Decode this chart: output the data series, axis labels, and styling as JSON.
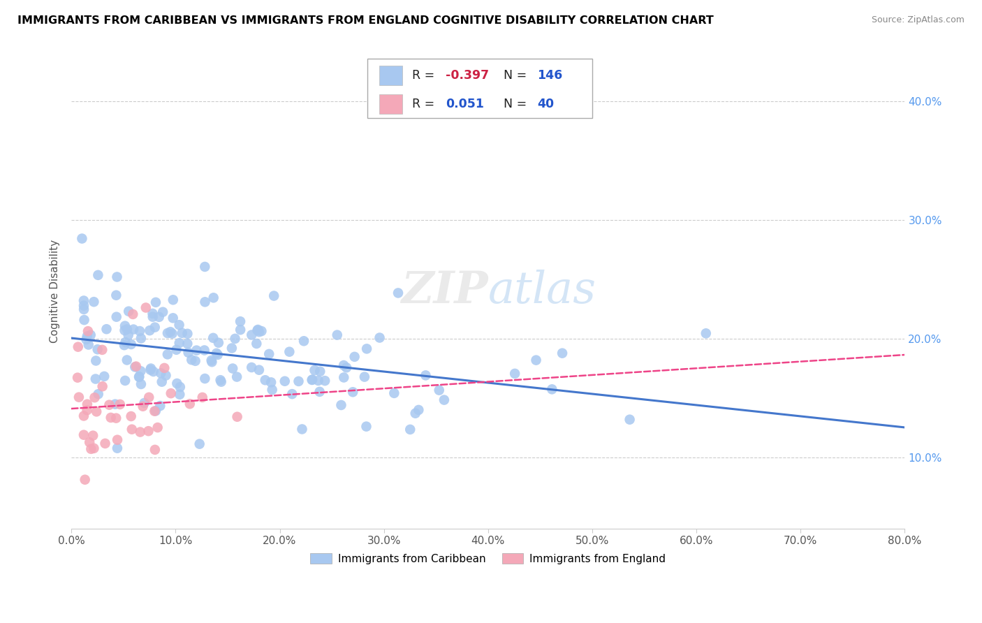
{
  "title": "IMMIGRANTS FROM CARIBBEAN VS IMMIGRANTS FROM ENGLAND COGNITIVE DISABILITY CORRELATION CHART",
  "source": "Source: ZipAtlas.com",
  "ylabel": "Cognitive Disability",
  "legend_label1": "Immigrants from Caribbean",
  "legend_label2": "Immigrants from England",
  "r1": -0.397,
  "n1": 146,
  "r2": 0.051,
  "n2": 40,
  "scatter_color1": "#a8c8f0",
  "scatter_color2": "#f4a8b8",
  "line_color1": "#4477cc",
  "line_color2": "#ee4488",
  "xlim": [
    0.0,
    0.8
  ],
  "ylim": [
    0.04,
    0.44
  ],
  "ytick_vals": [
    0.1,
    0.2,
    0.3,
    0.4
  ],
  "trend1_x0": 0.0,
  "trend1_y0": 0.2,
  "trend1_x1": 0.8,
  "trend1_y1": 0.148,
  "trend2_x0": 0.0,
  "trend2_y0": 0.155,
  "trend2_x1": 0.8,
  "trend2_y1": 0.2
}
